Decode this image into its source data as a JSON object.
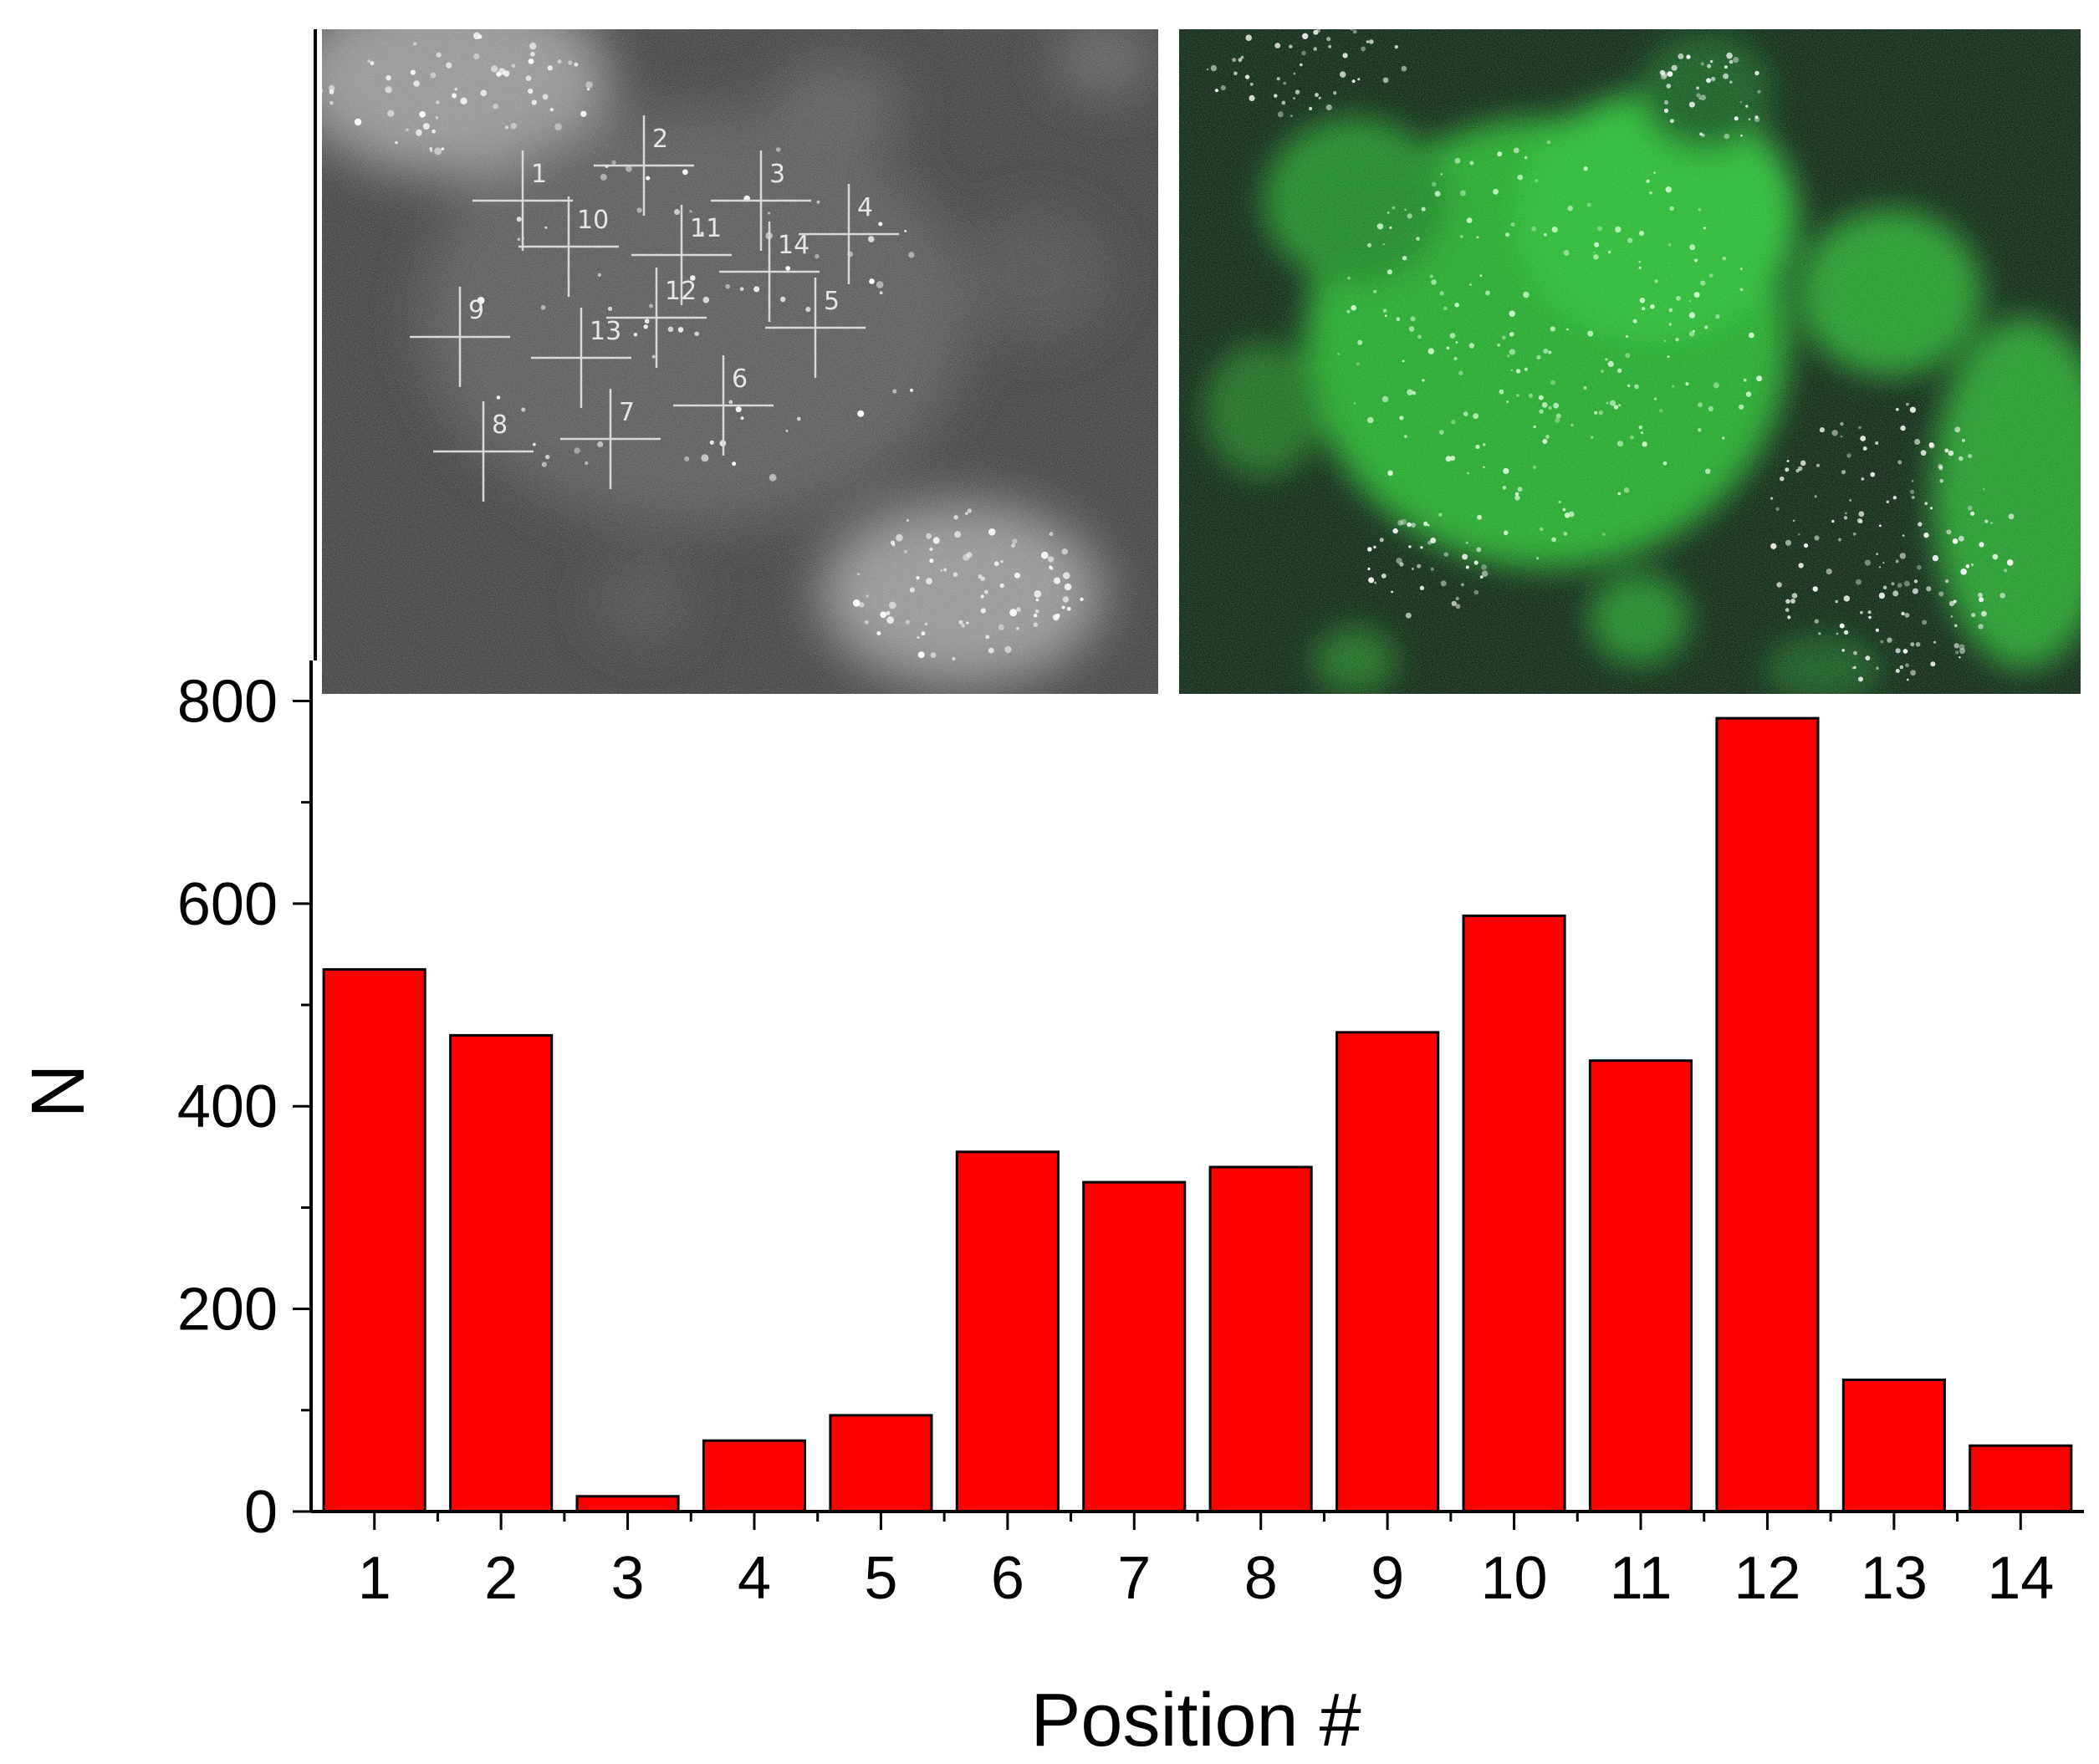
{
  "chart_data": {
    "type": "bar",
    "categories": [
      "1",
      "2",
      "3",
      "4",
      "5",
      "6",
      "7",
      "8",
      "9",
      "10",
      "11",
      "12",
      "13",
      "14"
    ],
    "values": [
      535,
      470,
      15,
      70,
      95,
      355,
      325,
      340,
      473,
      588,
      445,
      783,
      130,
      65
    ],
    "xlabel": "Position #",
    "ylabel": "N",
    "ylim": [
      0,
      840
    ],
    "yticks": [
      0,
      200,
      400,
      600,
      800
    ],
    "bar_color": "#ff0000",
    "grid": false,
    "legend": "none"
  },
  "inset_left": {
    "markers": [
      {
        "label": "1"
      },
      {
        "label": "2"
      },
      {
        "label": "3"
      },
      {
        "label": "4"
      },
      {
        "label": "5"
      },
      {
        "label": "6"
      },
      {
        "label": "7"
      },
      {
        "label": "8"
      },
      {
        "label": "9"
      },
      {
        "label": "10"
      },
      {
        "label": "11"
      },
      {
        "label": "12"
      },
      {
        "label": "13"
      },
      {
        "label": "14"
      }
    ],
    "background_color": "#2e2e2e"
  },
  "inset_right": {
    "background_color": "#061009",
    "accent_color": "#22c52a"
  }
}
